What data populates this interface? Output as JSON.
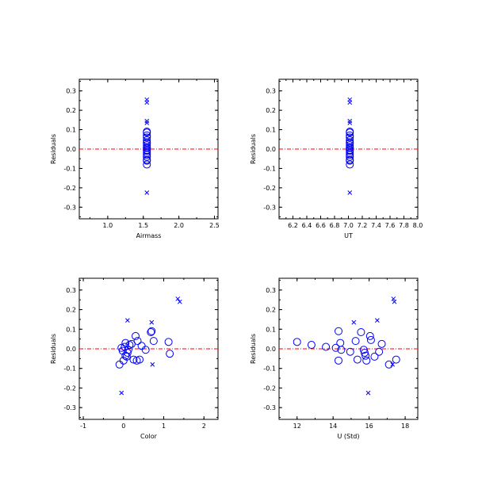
{
  "colors": {
    "points": "#0000ff",
    "zero_line": "#ff0000",
    "axes": "#000000",
    "background": "#ffffff"
  },
  "chart_data": [
    {
      "type": "scatter",
      "xlabel": "Airmass",
      "ylabel": "Residuals",
      "xlim": [
        0.6,
        2.55
      ],
      "ylim": [
        -0.36,
        0.36
      ],
      "xticks": [
        "1.0",
        "1.5",
        "2.0",
        "2.5"
      ],
      "yticks": [
        "-0.3",
        "-0.2",
        "-0.1",
        "0.0",
        "0.1",
        "0.2",
        "0.3"
      ],
      "zero_line": 0,
      "series": [
        {
          "marker": "x",
          "points": [
            [
              1.55,
              0.255
            ],
            [
              1.55,
              0.24
            ],
            [
              1.55,
              0.145
            ],
            [
              1.55,
              0.135
            ],
            [
              1.55,
              -0.225
            ]
          ]
        },
        {
          "marker": "o",
          "points": [
            [
              1.55,
              0.09
            ],
            [
              1.55,
              0.085
            ],
            [
              1.55,
              0.07
            ],
            [
              1.55,
              0.06
            ],
            [
              1.55,
              0.045
            ],
            [
              1.55,
              0.035
            ],
            [
              1.55,
              0.03
            ],
            [
              1.55,
              0.02
            ],
            [
              1.55,
              0.01
            ],
            [
              1.55,
              0.005
            ],
            [
              1.55,
              -0.005
            ],
            [
              1.55,
              -0.01
            ],
            [
              1.55,
              -0.02
            ],
            [
              1.55,
              -0.03
            ],
            [
              1.55,
              -0.04
            ],
            [
              1.55,
              -0.055
            ],
            [
              1.55,
              -0.06
            ],
            [
              1.55,
              -0.08
            ]
          ]
        }
      ]
    },
    {
      "type": "scatter",
      "xlabel": "UT",
      "ylabel": "Residuals",
      "xlim": [
        6.0,
        8.0
      ],
      "ylim": [
        -0.36,
        0.36
      ],
      "xticks": [
        "6.2",
        "6.4",
        "6.6",
        "6.8",
        "7.0",
        "7.2",
        "7.4",
        "7.6",
        "7.8",
        "8.0"
      ],
      "yticks": [
        "-0.3",
        "-0.2",
        "-0.1",
        "0.0",
        "0.1",
        "0.2",
        "0.3"
      ],
      "zero_line": 0,
      "series": [
        {
          "marker": "x",
          "points": [
            [
              7.02,
              0.255
            ],
            [
              7.02,
              0.24
            ],
            [
              7.02,
              0.145
            ],
            [
              7.02,
              0.135
            ],
            [
              7.02,
              -0.225
            ]
          ]
        },
        {
          "marker": "o",
          "points": [
            [
              7.02,
              0.09
            ],
            [
              7.02,
              0.085
            ],
            [
              7.02,
              0.07
            ],
            [
              7.02,
              0.06
            ],
            [
              7.02,
              0.045
            ],
            [
              7.02,
              0.035
            ],
            [
              7.02,
              0.03
            ],
            [
              7.02,
              0.02
            ],
            [
              7.02,
              0.01
            ],
            [
              7.02,
              0.005
            ],
            [
              7.02,
              -0.005
            ],
            [
              7.02,
              -0.01
            ],
            [
              7.02,
              -0.02
            ],
            [
              7.02,
              -0.03
            ],
            [
              7.02,
              -0.04
            ],
            [
              7.02,
              -0.055
            ],
            [
              7.02,
              -0.06
            ],
            [
              7.02,
              -0.08
            ]
          ]
        }
      ]
    },
    {
      "type": "scatter",
      "xlabel": "Color",
      "ylabel": "Residuals",
      "xlim": [
        -1.1,
        2.35
      ],
      "ylim": [
        -0.36,
        0.36
      ],
      "xticks": [
        "-1",
        "0",
        "1",
        "2"
      ],
      "yticks": [
        "-0.3",
        "-0.2",
        "-0.1",
        "0.0",
        "0.1",
        "0.2",
        "0.3"
      ],
      "zero_line": 0,
      "series": [
        {
          "marker": "x",
          "points": [
            [
              0.1,
              0.145
            ],
            [
              0.7,
              0.135
            ],
            [
              1.35,
              0.255
            ],
            [
              1.4,
              0.24
            ],
            [
              0.72,
              -0.08
            ],
            [
              -0.05,
              -0.225
            ]
          ]
        },
        {
          "marker": "o",
          "points": [
            [
              -0.05,
              0.005
            ],
            [
              -0.02,
              -0.01
            ],
            [
              0.03,
              0.01
            ],
            [
              0.05,
              0.03
            ],
            [
              0.1,
              -0.02
            ],
            [
              0.08,
              -0.04
            ],
            [
              0.12,
              -0.005
            ],
            [
              0.15,
              0.02
            ],
            [
              0.2,
              0.025
            ],
            [
              0.25,
              -0.055
            ],
            [
              0.3,
              0.065
            ],
            [
              0.35,
              0.04
            ],
            [
              0.33,
              -0.06
            ],
            [
              0.4,
              -0.055
            ],
            [
              0.45,
              0.015
            ],
            [
              0.55,
              -0.005
            ],
            [
              0.68,
              0.085
            ],
            [
              0.7,
              0.09
            ],
            [
              0.75,
              0.04
            ],
            [
              1.12,
              0.035
            ],
            [
              1.15,
              -0.025
            ],
            [
              -0.1,
              -0.08
            ],
            [
              0.0,
              -0.06
            ],
            [
              0.05,
              -0.035
            ]
          ]
        }
      ]
    },
    {
      "type": "scatter",
      "xlabel": "U (Std)",
      "ylabel": "Residuals",
      "xlim": [
        11.0,
        18.7
      ],
      "ylim": [
        -0.36,
        0.36
      ],
      "xticks": [
        "12",
        "14",
        "16",
        "18"
      ],
      "yticks": [
        "-0.3",
        "-0.2",
        "-0.1",
        "0.0",
        "0.1",
        "0.2",
        "0.3"
      ],
      "zero_line": 0,
      "series": [
        {
          "marker": "x",
          "points": [
            [
              15.15,
              0.135
            ],
            [
              16.45,
              0.145
            ],
            [
              17.35,
              0.255
            ],
            [
              17.4,
              0.24
            ],
            [
              17.3,
              -0.08
            ],
            [
              15.95,
              -0.225
            ]
          ]
        },
        {
          "marker": "o",
          "points": [
            [
              12.0,
              0.035
            ],
            [
              12.8,
              0.02
            ],
            [
              13.6,
              0.01
            ],
            [
              14.15,
              0.005
            ],
            [
              14.3,
              0.09
            ],
            [
              14.4,
              0.03
            ],
            [
              14.45,
              -0.005
            ],
            [
              14.3,
              -0.06
            ],
            [
              14.95,
              -0.015
            ],
            [
              15.25,
              0.04
            ],
            [
              15.35,
              -0.055
            ],
            [
              15.55,
              0.085
            ],
            [
              15.7,
              -0.005
            ],
            [
              15.75,
              -0.02
            ],
            [
              15.8,
              -0.035
            ],
            [
              15.85,
              -0.06
            ],
            [
              16.05,
              0.065
            ],
            [
              16.1,
              0.045
            ],
            [
              16.3,
              -0.04
            ],
            [
              16.55,
              -0.015
            ],
            [
              16.7,
              0.025
            ],
            [
              17.1,
              -0.08
            ],
            [
              17.5,
              -0.055
            ]
          ]
        }
      ]
    }
  ]
}
